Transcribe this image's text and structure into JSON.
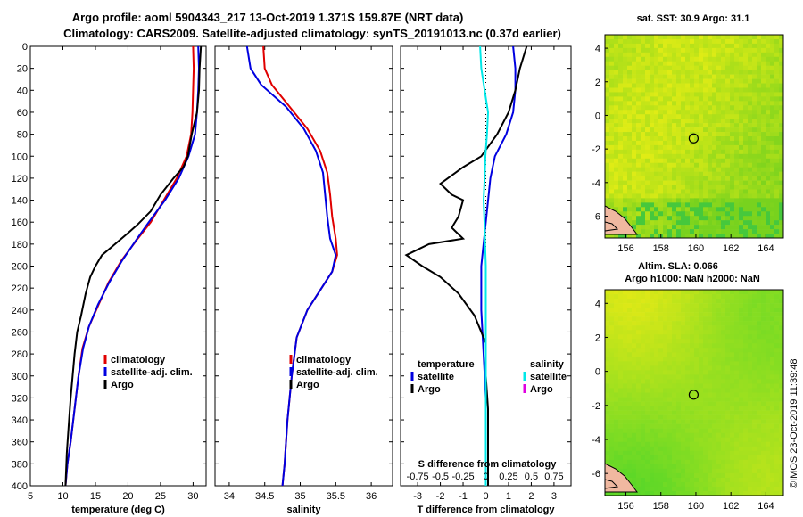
{
  "titles": {
    "line1": "Argo profile: aoml 5904343_217 13-Oct-2019 1.371S 159.87E (NRT data)",
    "line2": "Climatology: CARS2009. Satellite-adjusted climatology: synTS_20191013.nc (0.37d earlier)"
  },
  "watermark": "©IMOS 23-Oct-2019 11:39:48",
  "colors": {
    "climatology": "#e00000",
    "satellite": "#0000e0",
    "argo": "#000000",
    "sat_salinity": "#00e8e8",
    "argo_salinity": "#e000e0"
  },
  "chart_data": [
    {
      "id": "temperature",
      "type": "line",
      "xlabel": "temperature (deg C)",
      "ylabel": "",
      "xlim": [
        5,
        32
      ],
      "ylim": [
        400,
        0
      ],
      "xticks": [
        5,
        10,
        15,
        20,
        25,
        30
      ],
      "yticks": [
        0,
        20,
        40,
        60,
        80,
        100,
        120,
        140,
        160,
        180,
        200,
        220,
        240,
        260,
        280,
        300,
        320,
        340,
        360,
        380,
        400
      ],
      "legend": [
        {
          "label": "climatology",
          "color": "#e00000"
        },
        {
          "label": "satellite-adj. clim.",
          "color": "#0000e0"
        },
        {
          "label": "Argo",
          "color": "#000000"
        }
      ],
      "series": [
        {
          "name": "climatology",
          "color": "#e00000",
          "points": [
            [
              30.0,
              0
            ],
            [
              30.1,
              20
            ],
            [
              30.0,
              40
            ],
            [
              29.9,
              60
            ],
            [
              29.7,
              80
            ],
            [
              29.0,
              100
            ],
            [
              27.5,
              120
            ],
            [
              25.5,
              140
            ],
            [
              23.5,
              160
            ],
            [
              21.5,
              175
            ],
            [
              19.0,
              195
            ],
            [
              17.0,
              215
            ],
            [
              15.5,
              235
            ],
            [
              14.0,
              255
            ],
            [
              13.0,
              275
            ],
            [
              12.4,
              300
            ],
            [
              11.8,
              330
            ],
            [
              11.2,
              360
            ],
            [
              10.7,
              380
            ],
            [
              10.4,
              400
            ]
          ]
        },
        {
          "name": "satellite-adj. clim.",
          "color": "#0000e0",
          "points": [
            [
              30.8,
              0
            ],
            [
              30.9,
              20
            ],
            [
              30.8,
              40
            ],
            [
              30.6,
              60
            ],
            [
              30.3,
              80
            ],
            [
              29.3,
              100
            ],
            [
              27.8,
              120
            ],
            [
              25.7,
              140
            ],
            [
              23.2,
              160
            ],
            [
              21.4,
              175
            ],
            [
              19.1,
              195
            ],
            [
              17.1,
              215
            ],
            [
              15.4,
              235
            ],
            [
              14.0,
              255
            ],
            [
              13.1,
              275
            ],
            [
              12.4,
              300
            ],
            [
              11.8,
              330
            ],
            [
              11.2,
              360
            ],
            [
              10.7,
              380
            ],
            [
              10.4,
              400
            ]
          ]
        },
        {
          "name": "Argo",
          "color": "#000000",
          "points": [
            [
              31.2,
              0
            ],
            [
              31.0,
              20
            ],
            [
              30.9,
              40
            ],
            [
              30.6,
              60
            ],
            [
              29.8,
              80
            ],
            [
              29.2,
              100
            ],
            [
              28.5,
              110
            ],
            [
              27.0,
              120
            ],
            [
              25.0,
              135
            ],
            [
              23.5,
              150
            ],
            [
              21.5,
              162
            ],
            [
              20.0,
              170
            ],
            [
              18.0,
              180
            ],
            [
              16.0,
              190
            ],
            [
              15.0,
              200
            ],
            [
              14.2,
              210
            ],
            [
              13.5,
              225
            ],
            [
              12.8,
              245
            ],
            [
              12.2,
              260
            ],
            [
              11.8,
              280
            ],
            [
              11.5,
              300
            ],
            [
              11.2,
              320
            ],
            [
              10.9,
              345
            ],
            [
              10.6,
              370
            ],
            [
              10.4,
              400
            ]
          ]
        }
      ]
    },
    {
      "id": "salinity",
      "type": "line",
      "xlabel": "salinity",
      "ylabel": "",
      "xlim": [
        33.8,
        36.3
      ],
      "ylim": [
        400,
        0
      ],
      "xticks": [
        34,
        34.5,
        35,
        35.5,
        36
      ],
      "legend": [
        {
          "label": "climatology",
          "color": "#e00000"
        },
        {
          "label": "satellite-adj. clim.",
          "color": "#0000e0"
        },
        {
          "label": "Argo",
          "color": "#000000"
        }
      ],
      "series": [
        {
          "name": "climatology",
          "color": "#e00000",
          "points": [
            [
              34.48,
              0
            ],
            [
              34.5,
              20
            ],
            [
              34.6,
              35
            ],
            [
              34.85,
              55
            ],
            [
              35.1,
              75
            ],
            [
              35.28,
              95
            ],
            [
              35.38,
              115
            ],
            [
              35.42,
              135
            ],
            [
              35.45,
              155
            ],
            [
              35.5,
              175
            ],
            [
              35.52,
              190
            ],
            [
              35.45,
              205
            ],
            [
              35.3,
              220
            ],
            [
              35.1,
              240
            ],
            [
              34.95,
              265
            ],
            [
              34.88,
              300
            ],
            [
              34.82,
              340
            ],
            [
              34.78,
              380
            ],
            [
              34.75,
              400
            ]
          ]
        },
        {
          "name": "satellite-adj. clim.",
          "color": "#0000e0",
          "points": [
            [
              34.25,
              0
            ],
            [
              34.3,
              20
            ],
            [
              34.45,
              35
            ],
            [
              34.8,
              55
            ],
            [
              35.05,
              75
            ],
            [
              35.22,
              95
            ],
            [
              35.32,
              115
            ],
            [
              35.35,
              135
            ],
            [
              35.38,
              155
            ],
            [
              35.42,
              175
            ],
            [
              35.5,
              190
            ],
            [
              35.45,
              205
            ],
            [
              35.3,
              220
            ],
            [
              35.1,
              240
            ],
            [
              34.95,
              265
            ],
            [
              34.88,
              300
            ],
            [
              34.82,
              340
            ],
            [
              34.78,
              380
            ],
            [
              34.75,
              400
            ]
          ]
        }
      ]
    },
    {
      "id": "difference",
      "type": "line",
      "xlabel": "T difference from climatology",
      "xlabel_top": "S difference from climatology",
      "xlim": [
        -3.75,
        3.75
      ],
      "ylim": [
        400,
        0
      ],
      "xticks": [
        -3,
        -2,
        -1,
        0,
        1,
        2,
        3
      ],
      "xticks_s": [
        "-0.75",
        "-0.5",
        "-0.25",
        "0",
        "0.25",
        "0.5",
        "0.75"
      ],
      "legend_left": [
        {
          "label": "temperature",
          "color": ""
        },
        {
          "label": "satellite",
          "color": "#0000e0"
        },
        {
          "label": "Argo",
          "color": "#000000"
        }
      ],
      "legend_right": [
        {
          "label": "salinity",
          "color": ""
        },
        {
          "label": "satellite",
          "color": "#00e8e8"
        },
        {
          "label": "Argo",
          "color": "#e000e0"
        }
      ],
      "series": [
        {
          "name": "T satellite",
          "color": "#0000e0",
          "points": [
            [
              1.2,
              0
            ],
            [
              1.3,
              20
            ],
            [
              1.3,
              40
            ],
            [
              1.2,
              60
            ],
            [
              0.9,
              80
            ],
            [
              0.4,
              100
            ],
            [
              0.2,
              120
            ],
            [
              0.0,
              160
            ],
            [
              -0.2,
              200
            ],
            [
              -0.2,
              240
            ],
            [
              -0.1,
              280
            ],
            [
              0.0,
              320
            ],
            [
              0.0,
              360
            ],
            [
              0.0,
              400
            ]
          ]
        },
        {
          "name": "T Argo",
          "color": "#000000",
          "points": [
            [
              1.8,
              0
            ],
            [
              1.5,
              20
            ],
            [
              1.3,
              40
            ],
            [
              1.0,
              60
            ],
            [
              0.5,
              80
            ],
            [
              -0.2,
              100
            ],
            [
              -1.0,
              110
            ],
            [
              -2.0,
              125
            ],
            [
              -1.5,
              135
            ],
            [
              -1.0,
              140
            ],
            [
              -1.2,
              155
            ],
            [
              -1.5,
              165
            ],
            [
              -1.0,
              175
            ],
            [
              -2.5,
              180
            ],
            [
              -3.5,
              190
            ],
            [
              -2.8,
              200
            ],
            [
              -2.0,
              210
            ],
            [
              -1.2,
              225
            ],
            [
              -0.5,
              245
            ],
            [
              0.0,
              270
            ],
            [
              0.0,
              300
            ],
            [
              0.1,
              330
            ],
            [
              0.1,
              360
            ],
            [
              0.1,
              400
            ]
          ]
        },
        {
          "name": "S satellite",
          "color": "#00e8e8",
          "points": [
            [
              -0.25,
              0
            ],
            [
              -0.2,
              20
            ],
            [
              -0.05,
              40
            ],
            [
              0.1,
              60
            ],
            [
              0.05,
              80
            ],
            [
              -0.02,
              100
            ],
            [
              -0.05,
              120
            ],
            [
              -0.1,
              140
            ],
            [
              -0.06,
              160
            ],
            [
              -0.03,
              180
            ],
            [
              0.0,
              200
            ],
            [
              0.0,
              240
            ],
            [
              0.0,
              280
            ],
            [
              0.0,
              320
            ],
            [
              0.0,
              360
            ],
            [
              0.0,
              400
            ]
          ]
        }
      ]
    },
    {
      "id": "sst_map",
      "type": "heatmap",
      "title": "sat. SST: 30.9 Argo: 31.1",
      "xlim": [
        154.8,
        165
      ],
      "ylim": [
        -7.3,
        4.8
      ],
      "xticks": [
        156,
        158,
        160,
        162,
        164
      ],
      "yticks": [
        4,
        2,
        0,
        -2,
        -4,
        -6
      ],
      "argo_position": [
        159.87,
        -1.371
      ]
    },
    {
      "id": "sla_map",
      "type": "heatmap",
      "title_line1": "Altim. SLA: 0.066",
      "title_line2": "Argo h1000: NaN h2000: NaN",
      "xlim": [
        154.8,
        165
      ],
      "ylim": [
        -7.3,
        4.8
      ],
      "xticks": [
        156,
        158,
        160,
        162,
        164
      ],
      "yticks": [
        4,
        2,
        0,
        -2,
        -4,
        -6
      ],
      "argo_position": [
        159.87,
        -1.371
      ]
    }
  ]
}
